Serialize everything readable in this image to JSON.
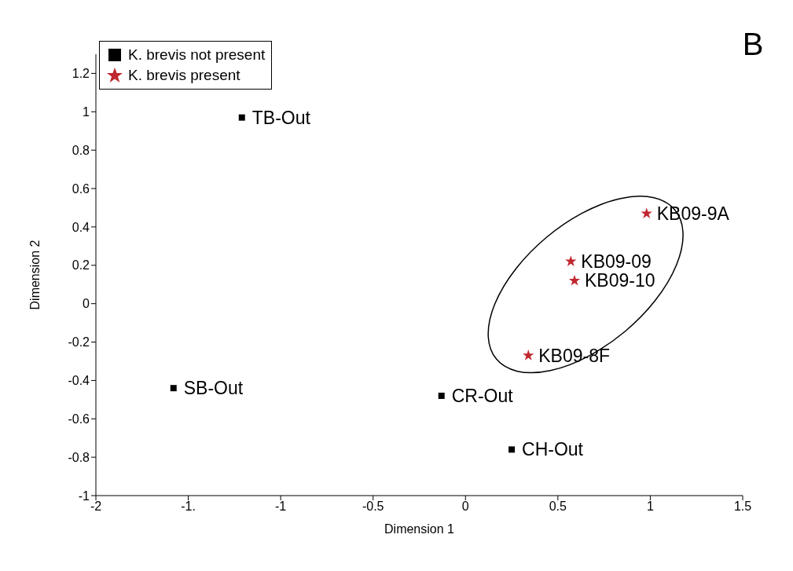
{
  "chart_data": {
    "type": "scatter",
    "xlabel": "Dimension 1",
    "ylabel": "Dimension 2",
    "xlim": [
      -2,
      1.5
    ],
    "xticks": [
      -2,
      {
        "value": -1.5,
        "label": "-1."
      },
      -1,
      -0.5,
      0,
      0.5,
      1,
      1.5
    ],
    "ylim": [
      -1,
      1.3
    ],
    "yticks": [
      -1,
      -0.8,
      -0.6,
      -0.4,
      -0.2,
      0,
      0.2,
      0.4,
      0.6,
      0.8,
      1,
      1.2
    ],
    "grid": false,
    "legend": "top left",
    "series": [
      {
        "name": "K. brevis not present",
        "color": "#000000",
        "marker": "square",
        "x": [
          -1.21,
          -1.58,
          -0.13,
          0.25
        ],
        "values": [
          0.97,
          -0.44,
          -0.48,
          -0.76
        ]
      },
      {
        "name": "K. brevis present",
        "color": "#c0272d",
        "marker": "star",
        "x": [
          0.98,
          0.57,
          0.59,
          0.34
        ],
        "values": [
          0.47,
          0.22,
          0.12,
          -0.27
        ]
      }
    ],
    "annotations": [
      {
        "text": "TB-Out",
        "x": -1.21,
        "y": 0.97
      },
      {
        "text": "SB-Out",
        "x": -1.58,
        "y": -0.44
      },
      {
        "text": "CR-Out",
        "x": -0.13,
        "y": -0.48
      },
      {
        "text": "CH-Out",
        "x": 0.25,
        "y": -0.76
      },
      {
        "text": "KB09-9A",
        "x": 0.98,
        "y": 0.47
      },
      {
        "text": "KB09-09",
        "x": 0.57,
        "y": 0.22
      },
      {
        "text": "KB09-10",
        "x": 0.59,
        "y": 0.12
      },
      {
        "text": "KB09-8F",
        "x": 0.34,
        "y": -0.27
      },
      "B"
    ]
  }
}
